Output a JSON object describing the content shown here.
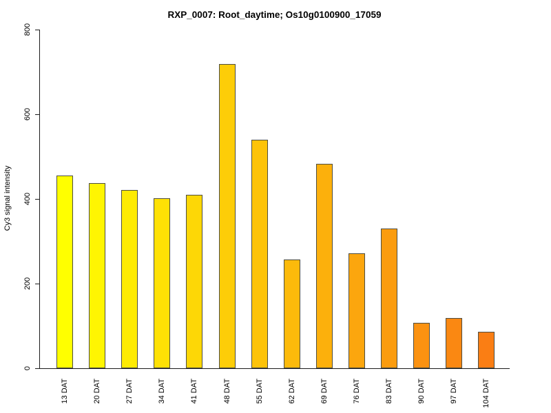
{
  "title": "RXP_0007: Root_daytime; Os10g0100900_17059",
  "chart_data": {
    "type": "bar",
    "title": "RXP_0007: Root_daytime; Os10g0100900_17059",
    "xlabel": "",
    "ylabel": "Cy3 signal intensity",
    "categories": [
      "13 DAT",
      "20 DAT",
      "27 DAT",
      "34 DAT",
      "41 DAT",
      "48 DAT",
      "55 DAT",
      "62 DAT",
      "69 DAT",
      "76 DAT",
      "83 DAT",
      "90 DAT",
      "97 DAT",
      "104 DAT"
    ],
    "values": [
      455,
      437,
      421,
      402,
      410,
      719,
      540,
      257,
      483,
      272,
      330,
      108,
      118,
      86
    ],
    "bar_colors": [
      "#FFFF00",
      "#FFF502",
      "#FEEB03",
      "#FEE105",
      "#FDD706",
      "#FDCD08",
      "#FDC309",
      "#FCBA0B",
      "#FCB00C",
      "#FCA60E",
      "#FB9C0F",
      "#FB9211",
      "#FA8812",
      "#FA7E14"
    ],
    "bar_border_color": "#4d4d42",
    "ylim": [
      0,
      800
    ],
    "yticks": [
      0,
      200,
      400,
      600,
      800
    ],
    "grid": false,
    "legend": "none",
    "axis_color": "#1a1a1a",
    "x_tick_label_rotation_deg": 90
  }
}
